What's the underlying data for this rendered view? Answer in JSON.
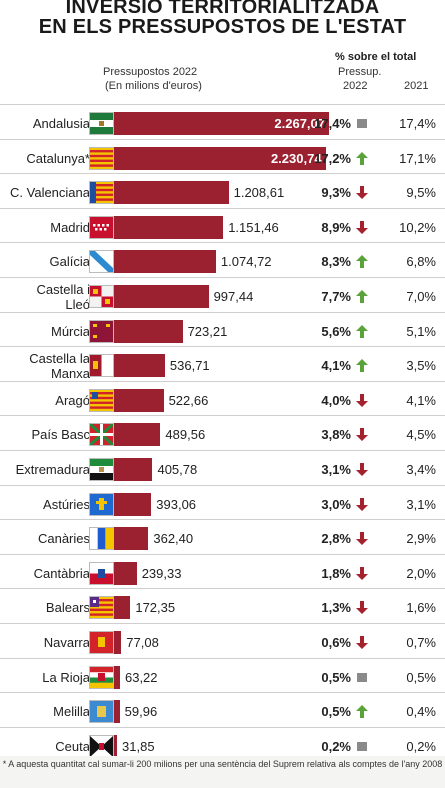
{
  "title_line1": "INVERSIÓ TERRITORIALITZADA",
  "title_line2": "EN ELS PRESSUPOSTOS DE L'ESTAT",
  "header": {
    "budget_label_1": "Pressupostos 2022",
    "budget_label_2": "(En milions d'euros)",
    "pct_group": "% sobre el total",
    "col_press_1": "Pressup.",
    "col_press_2": "2022",
    "col_2021": "2021"
  },
  "colors": {
    "bar": "#9b2030",
    "up": "#5aa33a",
    "down": "#a3222d",
    "same": "#8a8a8a"
  },
  "chart_data": {
    "type": "bar",
    "title": "INVERSIÓ TERRITORIALITZADA EN ELS PRESSUPOSTOS DE L'ESTAT",
    "xlabel": "Pressupostos 2022 (En milions d'euros)",
    "categories": [
      "Andalusia",
      "Catalunya*",
      "C. Valenciana",
      "Madrid",
      "Galícia",
      "Castella i Lleó",
      "Múrcia",
      "Castella la Manxa",
      "Aragó",
      "País Basc",
      "Extremadura",
      "Astúries",
      "Canàries",
      "Cantàbria",
      "Balears",
      "Navarra",
      "La Rioja",
      "Melilla",
      "Ceuta"
    ],
    "values": [
      2267.07,
      2230.74,
      1208.61,
      1151.46,
      1074.72,
      997.44,
      723.21,
      536.71,
      522.66,
      489.56,
      405.78,
      393.06,
      362.4,
      239.33,
      172.35,
      77.08,
      63.22,
      59.96,
      31.85
    ],
    "value_labels": [
      "2.267,07",
      "2.230,74",
      "1.208,61",
      "1.151,46",
      "1.074,72",
      "997,44",
      "723,21",
      "536,71",
      "522,66",
      "489,56",
      "405,78",
      "393,06",
      "362,40",
      "239,33",
      "172,35",
      "77,08",
      "63,22",
      "59,96",
      "31,85"
    ],
    "pct_2022": [
      "17,4%",
      "17,2%",
      "9,3%",
      "8,9%",
      "8,3%",
      "7,7%",
      "5,6%",
      "4,1%",
      "4,0%",
      "3,8%",
      "3,1%",
      "3,0%",
      "2,8%",
      "1,8%",
      "1,3%",
      "0,6%",
      "0,5%",
      "0,5%",
      "0,2%"
    ],
    "pct_2021": [
      "17,4%",
      "17,1%",
      "9,5%",
      "10,2%",
      "6,8%",
      "7,0%",
      "5,1%",
      "3,5%",
      "4,1%",
      "4,5%",
      "3,4%",
      "3,1%",
      "2,9%",
      "2,0%",
      "1,6%",
      "0,7%",
      "0,5%",
      "0,4%",
      "0,2%"
    ],
    "trend": [
      "same",
      "up",
      "down",
      "down",
      "up",
      "up",
      "up",
      "up",
      "down",
      "down",
      "down",
      "down",
      "down",
      "down",
      "down",
      "down",
      "same",
      "up",
      "same"
    ],
    "footnote": "* A aquesta quantitat cal sumar-li 200 milions per una sentència del Suprem relativa als comptes de l'any 2008"
  }
}
